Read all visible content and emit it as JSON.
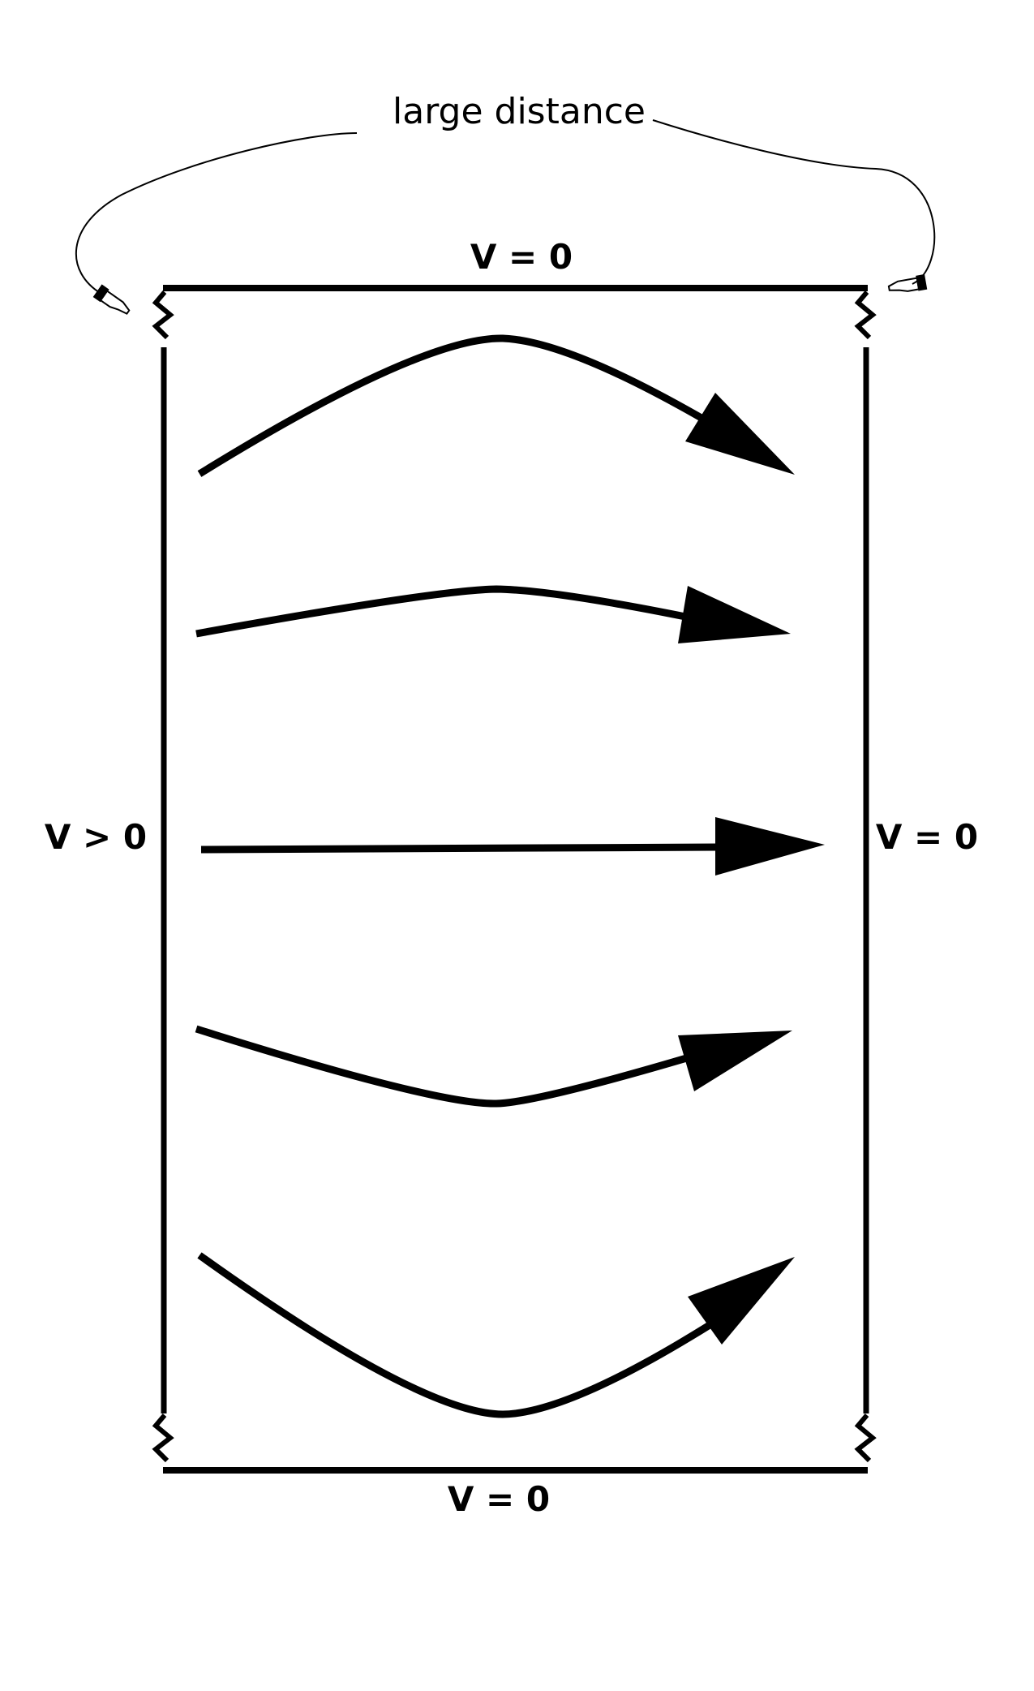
{
  "annotation": {
    "label": "large distance"
  },
  "boundaries": {
    "top": {
      "label": "V = 0"
    },
    "bottom": {
      "label": "V = 0"
    },
    "left": {
      "label": "V > 0"
    },
    "right": {
      "label": "V = 0"
    }
  },
  "colors": {
    "ink": "#000000",
    "background": "#ffffff"
  },
  "icons": {
    "pointer": "pointing-hand-icon",
    "break": "zigzag-break-icon"
  }
}
